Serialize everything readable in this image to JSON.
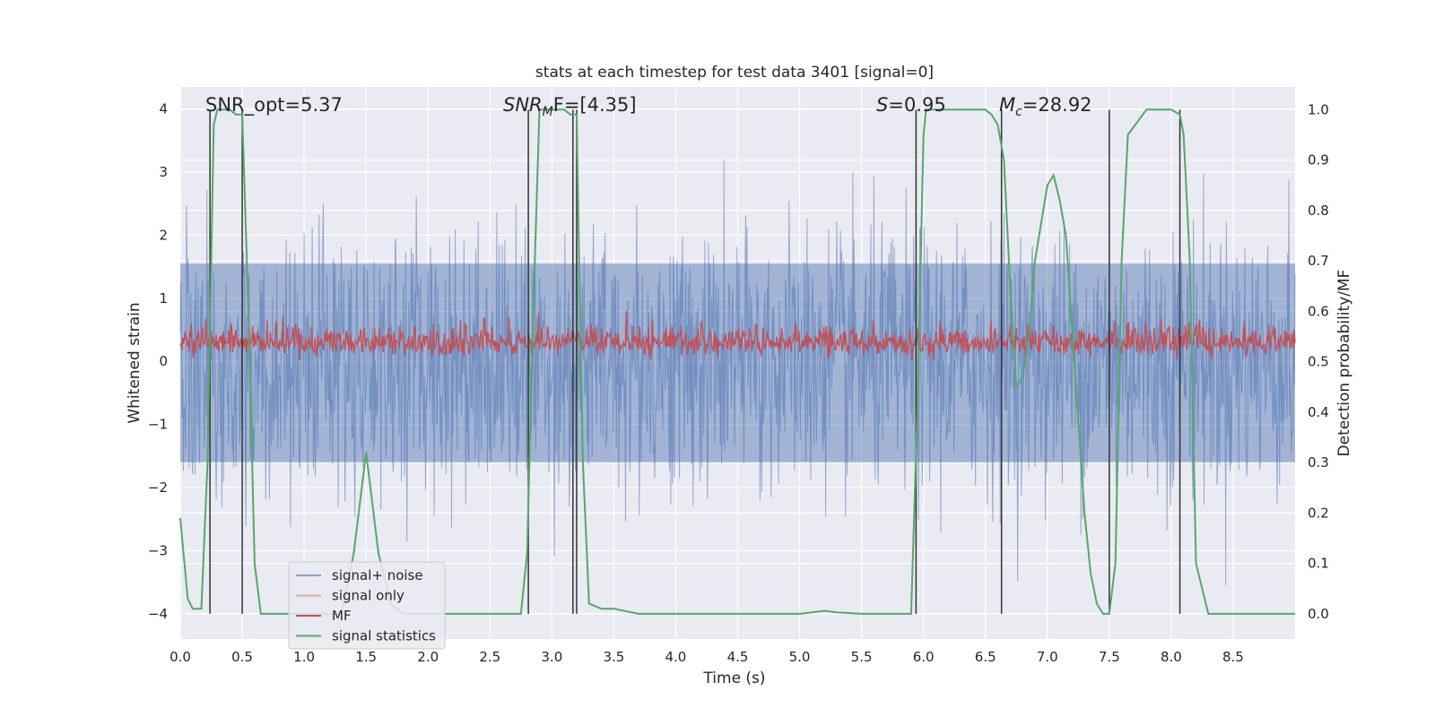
{
  "chart_data": {
    "type": "line",
    "title": "stats at each timestep for test data 3401 [signal=0]",
    "xlabel": "Time (s)",
    "ylabel": "Whitened strain",
    "ylabel_right": "Detection probability/MF",
    "xlim": [
      0.0,
      9.0
    ],
    "ylim": [
      -4.4,
      4.35
    ],
    "ylim_right": [
      -0.05,
      1.045
    ],
    "x_ticks": [
      "0.0",
      "0.5",
      "1.0",
      "1.5",
      "2.0",
      "2.5",
      "3.0",
      "3.5",
      "4.0",
      "4.5",
      "5.0",
      "5.5",
      "6.0",
      "6.5",
      "7.0",
      "7.5",
      "8.0",
      "8.5"
    ],
    "y_ticks": [
      "−4",
      "−3",
      "−2",
      "−1",
      "0",
      "1",
      "2",
      "3",
      "4"
    ],
    "y_ticks_right": [
      "0.0",
      "0.1",
      "0.2",
      "0.3",
      "0.4",
      "0.5",
      "0.6",
      "0.7",
      "0.8",
      "0.9",
      "1.0"
    ],
    "annotations": {
      "snr_opt": "SNR_opt=5.37",
      "snr_mf_sym": "SNR",
      "snr_mf_sub": "M",
      "snr_mf_val": "F=[4.35]",
      "s_sym": "S",
      "s_val": "=0.95",
      "mc_sym": "M",
      "mc_sub": "c",
      "mc_val": "=28.92"
    },
    "legend_position": "lower left",
    "series": [
      {
        "name": "signal+ noise",
        "color": "#4c72b0",
        "noise_range": [
          -3.9,
          3.6
        ],
        "band_sigma": 1.0
      },
      {
        "name": "signal only",
        "color": "#dd8452",
        "values": "0 throughout"
      },
      {
        "name": "MF",
        "color": "#c44e52",
        "baseline": 0.3,
        "range": [
          0.0,
          1.0
        ]
      },
      {
        "name": "signal statistics",
        "color": "#55a868",
        "x": [
          0.0,
          0.06,
          0.1,
          0.17,
          0.22,
          0.27,
          0.3,
          0.36,
          0.4,
          0.45,
          0.5,
          0.55,
          0.6,
          0.65,
          0.8,
          1.0,
          1.3,
          1.4,
          1.5,
          1.6,
          1.7,
          1.8,
          2.0,
          2.5,
          2.75,
          2.8,
          2.85,
          2.9,
          3.0,
          3.1,
          3.15,
          3.2,
          3.22,
          3.25,
          3.3,
          3.4,
          3.5,
          3.7,
          4.0,
          4.5,
          5.0,
          5.1,
          5.2,
          5.3,
          5.5,
          5.8,
          5.9,
          5.95,
          6.0,
          6.02,
          6.1,
          6.5,
          6.55,
          6.6,
          6.65,
          6.7,
          6.75,
          6.8,
          6.85,
          6.9,
          7.0,
          7.05,
          7.1,
          7.15,
          7.3,
          7.35,
          7.4,
          7.45,
          7.5,
          7.55,
          7.6,
          7.65,
          7.8,
          7.9,
          8.0,
          8.07,
          8.1,
          8.15,
          8.2,
          8.3,
          8.6,
          9.0
        ],
        "y": [
          0.19,
          0.03,
          0.01,
          0.01,
          0.3,
          0.97,
          1.0,
          1.0,
          1.0,
          0.99,
          0.99,
          0.6,
          0.1,
          0.0,
          0.0,
          0.0,
          0.0,
          0.12,
          0.32,
          0.12,
          0.02,
          0.0,
          0.0,
          0.0,
          0.0,
          0.12,
          0.6,
          1.0,
          1.0,
          1.0,
          0.99,
          0.99,
          0.7,
          0.3,
          0.02,
          0.01,
          0.01,
          0.0,
          0.0,
          0.0,
          0.0,
          0.003,
          0.006,
          0.003,
          0.0,
          0.0,
          0.0,
          0.4,
          0.95,
          1.0,
          1.0,
          1.0,
          0.99,
          0.97,
          0.9,
          0.65,
          0.45,
          0.47,
          0.55,
          0.7,
          0.85,
          0.87,
          0.82,
          0.75,
          0.2,
          0.08,
          0.02,
          0.0,
          0.0,
          0.1,
          0.7,
          0.95,
          1.0,
          1.0,
          1.0,
          0.99,
          0.95,
          0.7,
          0.1,
          0.0,
          0.0,
          0.0
        ]
      }
    ],
    "vertical_markers_x": [
      0.24,
      0.5,
      2.81,
      3.17,
      3.2,
      5.94,
      6.63,
      7.5,
      8.07
    ],
    "marker_color": "#333333",
    "background": "#eaeaf2",
    "grid": true
  }
}
